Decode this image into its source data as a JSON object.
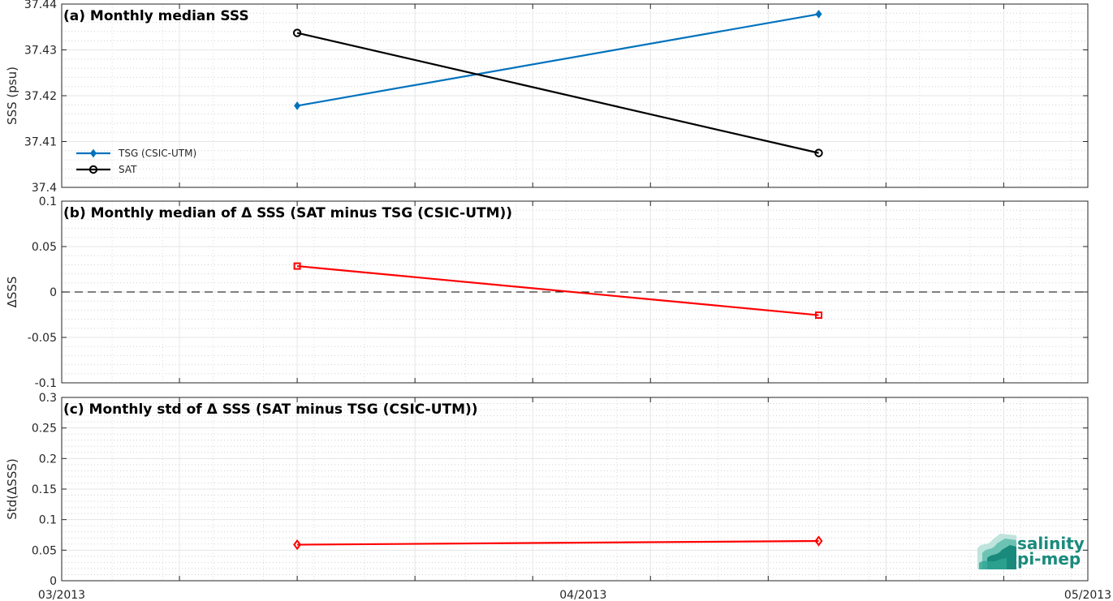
{
  "chart_data": [
    {
      "type": "line",
      "title": "(a) Monthly median SSS",
      "ylabel": "SSS (psu)",
      "xlabel": "",
      "x_ticks": [
        "03/2013",
        "04/2013",
        "05/2013"
      ],
      "ylim": [
        37.4,
        37.44
      ],
      "y_ticks": [
        "37.4",
        "37.41",
        "37.42",
        "37.43",
        "37.44"
      ],
      "grid": true,
      "legend_position": "bottom-left",
      "x": [
        "2013-03-15",
        "2013-04-15"
      ],
      "series": [
        {
          "name": "TSG (CSIC-UTM)",
          "values": [
            37.4178,
            37.4378
          ],
          "color": "#0072bd",
          "marker": "diamond"
        },
        {
          "name": "SAT",
          "values": [
            37.4337,
            37.4075
          ],
          "color": "#000000",
          "marker": "circle"
        }
      ]
    },
    {
      "type": "line",
      "title": "(b) Monthly median of Δ SSS (SAT minus TSG (CSIC-UTM))",
      "ylabel": "ΔSSS",
      "xlabel": "",
      "ylim": [
        -0.1,
        0.1
      ],
      "y_ticks": [
        "-0.1",
        "-0.05",
        "0",
        "0.05",
        "0.1"
      ],
      "grid": true,
      "reference_line": 0,
      "x": [
        "2013-03-15",
        "2013-04-15"
      ],
      "series": [
        {
          "values": [
            0.0285,
            -0.0255
          ],
          "color": "#ff0000",
          "marker": "square"
        }
      ]
    },
    {
      "type": "line",
      "title": "(c) Monthly std of Δ SSS (SAT minus TSG (CSIC-UTM))",
      "ylabel": "Std(ΔSSS)",
      "xlabel": "",
      "x_ticks": [
        "03/2013",
        "04/2013",
        "05/2013"
      ],
      "ylim": [
        0,
        0.3
      ],
      "y_ticks": [
        "0",
        "0.05",
        "0.1",
        "0.15",
        "0.2",
        "0.25",
        "0.3"
      ],
      "grid": true,
      "x": [
        "2013-03-15",
        "2013-04-15"
      ],
      "series": [
        {
          "values": [
            0.059,
            0.065
          ],
          "color": "#ff0000",
          "marker": "diamond"
        }
      ]
    }
  ],
  "logo": {
    "line1": "salinity",
    "line2": "pi-mep",
    "color": "#1a8a7d"
  }
}
